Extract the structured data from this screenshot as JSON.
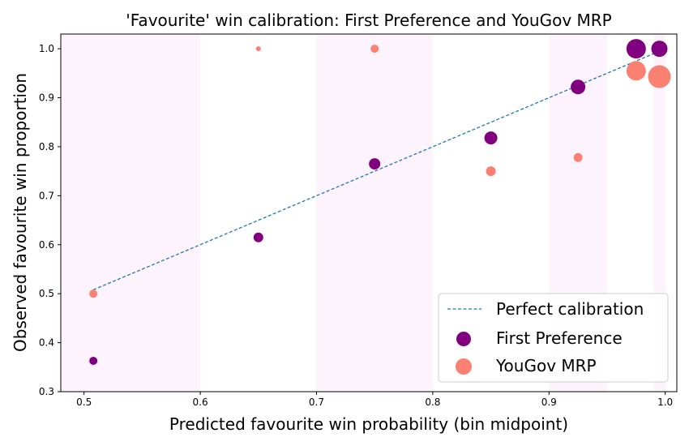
{
  "chart_data": {
    "type": "scatter",
    "title": "'Favourite' win calibration: First Preference and YouGov MRP",
    "xlabel": "Predicted favourite win probability (bin midpoint)",
    "ylabel": "Observed favourite win proportion",
    "xlim": [
      0.48,
      1.01
    ],
    "ylim": [
      0.3,
      1.03
    ],
    "x_ticks": [
      "0.5",
      "0.6",
      "0.7",
      "0.8",
      "0.9",
      "1.0"
    ],
    "y_ticks": [
      "0.3",
      "0.4",
      "0.5",
      "0.6",
      "0.7",
      "0.8",
      "0.9",
      "1.0"
    ],
    "grid": false,
    "legend_placement": "lower-right",
    "shaded_bands": [
      [
        0.48,
        0.6
      ],
      [
        0.7,
        0.8
      ],
      [
        0.9,
        0.95
      ],
      [
        0.99,
        1.0
      ]
    ],
    "reference_line": {
      "name": "Perfect calibration",
      "x": [
        0.508,
        0.995
      ],
      "y": [
        0.508,
        0.995
      ],
      "color": "#1f77b4",
      "style": "dashed"
    },
    "series": [
      {
        "name": "First Preference",
        "color": "#800080",
        "points": [
          {
            "x": 0.508,
            "y": 0.363,
            "size": 5
          },
          {
            "x": 0.65,
            "y": 0.615,
            "size": 6
          },
          {
            "x": 0.75,
            "y": 0.765,
            "size": 7
          },
          {
            "x": 0.85,
            "y": 0.818,
            "size": 8
          },
          {
            "x": 0.925,
            "y": 0.922,
            "size": 9
          },
          {
            "x": 0.975,
            "y": 1.0,
            "size": 12
          },
          {
            "x": 0.995,
            "y": 1.0,
            "size": 10
          }
        ]
      },
      {
        "name": "YouGov MRP",
        "color": "#fa8072",
        "points": [
          {
            "x": 0.508,
            "y": 0.5,
            "size": 5
          },
          {
            "x": 0.65,
            "y": 1.0,
            "size": 3
          },
          {
            "x": 0.75,
            "y": 1.0,
            "size": 5
          },
          {
            "x": 0.75,
            "y": 0.765,
            "size": 0
          },
          {
            "x": 0.85,
            "y": 0.75,
            "size": 6
          },
          {
            "x": 0.925,
            "y": 0.778,
            "size": 5.5
          },
          {
            "x": 0.975,
            "y": 0.955,
            "size": 12
          },
          {
            "x": 0.995,
            "y": 0.943,
            "size": 14
          }
        ]
      }
    ]
  }
}
